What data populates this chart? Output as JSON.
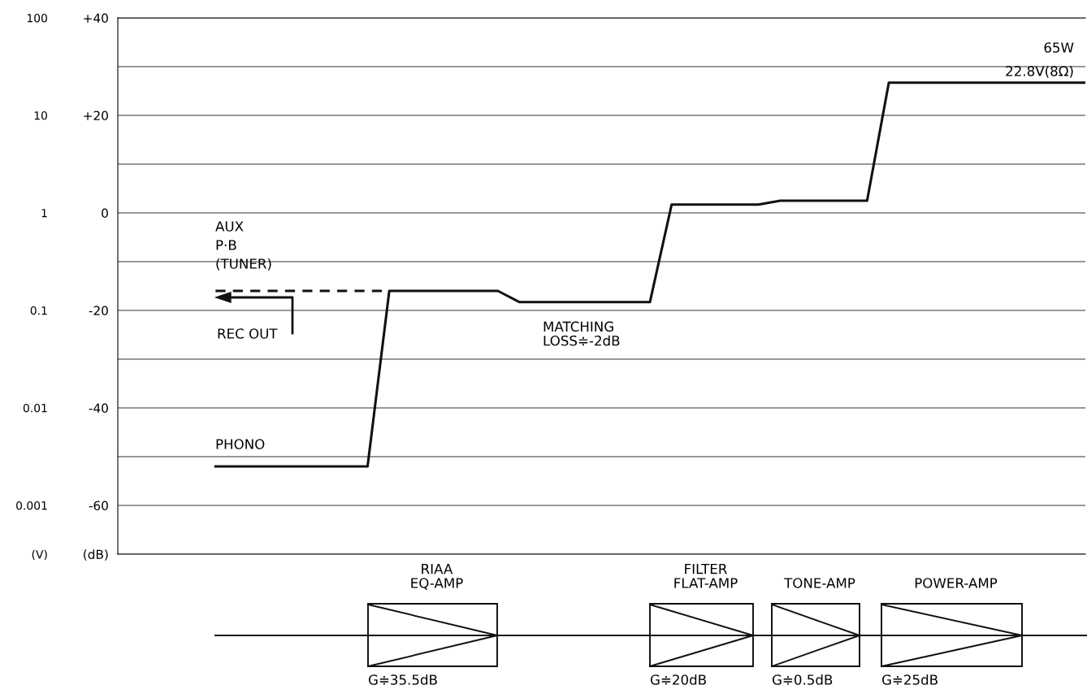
{
  "chart_data": {
    "type": "line",
    "categories": [
      null,
      null,
      null,
      null,
      null,
      null,
      null,
      null,
      null,
      null,
      null,
      null,
      null,
      null,
      null,
      null,
      null,
      null,
      null,
      null,
      null,
      null,
      null,
      null,
      null,
      null,
      null,
      null,
      null,
      null,
      null,
      null,
      null,
      null,
      null,
      null,
      null,
      null,
      null,
      null,
      null
    ],
    "series": [
      {
        "color": "#111111",
        "line_style": "solid",
        "values": [
          -52,
          -52,
          -52,
          -52,
          -52,
          -52,
          -52,
          -52,
          -16,
          -16,
          -16,
          -16,
          -16,
          -16,
          -18.3,
          -18.3,
          -18.3,
          -18.3,
          -18.3,
          -18.3,
          -18.3,
          1.7,
          1.7,
          1.7,
          1.7,
          1.7,
          2.5,
          2.5,
          2.5,
          2.5,
          2.5,
          26.7,
          26.7,
          26.7,
          26.7,
          26.7,
          26.7,
          26.7,
          26.7,
          26.7,
          26.7
        ]
      },
      {
        "color": "#111111",
        "line_style": "dashed",
        "values": [
          -16,
          -16,
          -16,
          -16,
          -16,
          -16,
          -16,
          -16,
          -16,
          null,
          null,
          null,
          null,
          null,
          null,
          null,
          null,
          null,
          null,
          null,
          null,
          null,
          null,
          null,
          null,
          null,
          null,
          null,
          null,
          null,
          null,
          null,
          null,
          null,
          null,
          null,
          null,
          null,
          null,
          null,
          null
        ]
      }
    ],
    "ylim": [
      -70,
      40
    ],
    "yticks": [
      {
        "value": -70,
        "label": "(dB)"
      },
      -60,
      {
        "value": -50,
        "label": null
      },
      -40,
      {
        "value": -30,
        "label": null
      },
      -20,
      {
        "value": -10,
        "label": null
      },
      0,
      {
        "value": 10,
        "label": null
      },
      {
        "value": 20,
        "label": "+20"
      },
      {
        "value": 30,
        "label": null
      },
      {
        "value": 40,
        "label": "+40"
      }
    ],
    "y2lim": [
      0.000316,
      100
    ],
    "y2ticks": [
      {
        "value": 0.000316,
        "label": "(V)"
      },
      0.001,
      0.01,
      0.1,
      1,
      10,
      100
    ],
    "log": "y2",
    "grid": "y",
    "marker": "none",
    "annotations": [
      "65W",
      "22.8V(8Ω)",
      "AUX",
      "P·B",
      "(TUNER)",
      "REC OUT",
      "PHONO",
      "MATCHING\nLOSS≑-2dB",
      "RIAA\nEQ-AMP",
      "G≑35.5dB",
      "FILTER\nFLAT-AMP",
      "G≑20dB",
      "TONE-AMP",
      "G≑0.5dB",
      "POWER-AMP",
      "G≑25dB"
    ]
  }
}
